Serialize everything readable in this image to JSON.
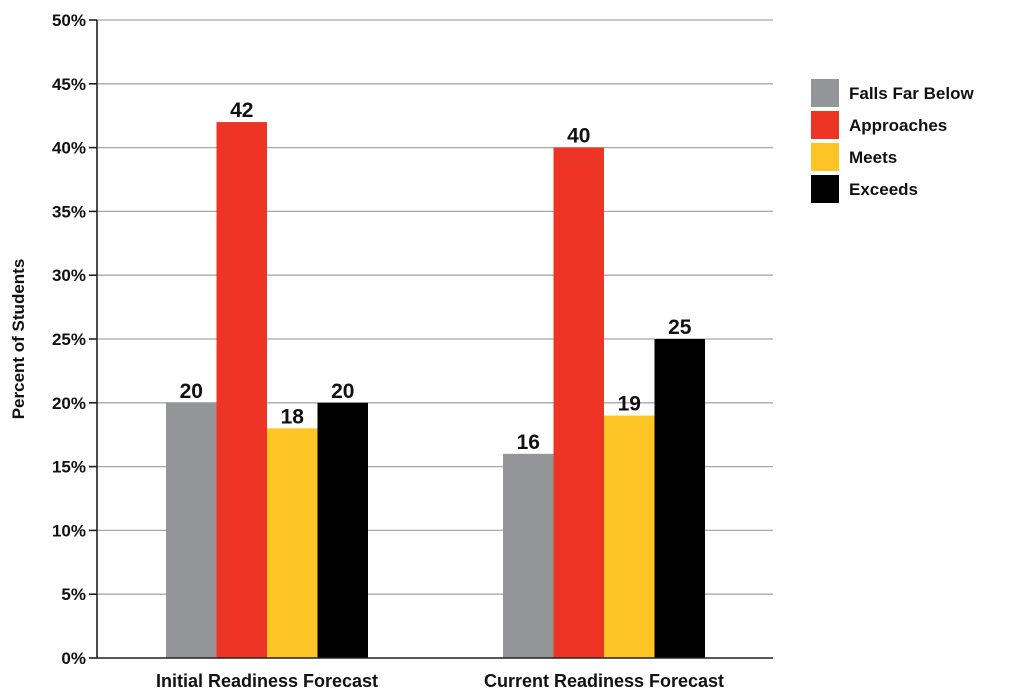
{
  "chart_data": {
    "type": "bar",
    "title": "",
    "xlabel": "",
    "ylabel": "Percent of Students",
    "ylim": [
      0,
      50
    ],
    "yticks": [
      0,
      5,
      10,
      15,
      20,
      25,
      30,
      35,
      40,
      45,
      50
    ],
    "ytick_labels": [
      "0%",
      "5%",
      "10%",
      "15%",
      "20%",
      "25%",
      "30%",
      "35%",
      "40%",
      "45%",
      "50%"
    ],
    "grid": true,
    "legend_position": "top-right",
    "categories": [
      "Initial Readiness Forecast",
      "Current Readiness Forecast"
    ],
    "series": [
      {
        "name": "Falls Far Below",
        "color": "#939598",
        "values": [
          20,
          16
        ]
      },
      {
        "name": "Approaches",
        "color": "#ee3424",
        "values": [
          42,
          40
        ]
      },
      {
        "name": "Meets",
        "color": "#fdc425",
        "values": [
          18,
          19
        ]
      },
      {
        "name": "Exceeds",
        "color": "#000000",
        "values": [
          20,
          25
        ]
      }
    ]
  }
}
